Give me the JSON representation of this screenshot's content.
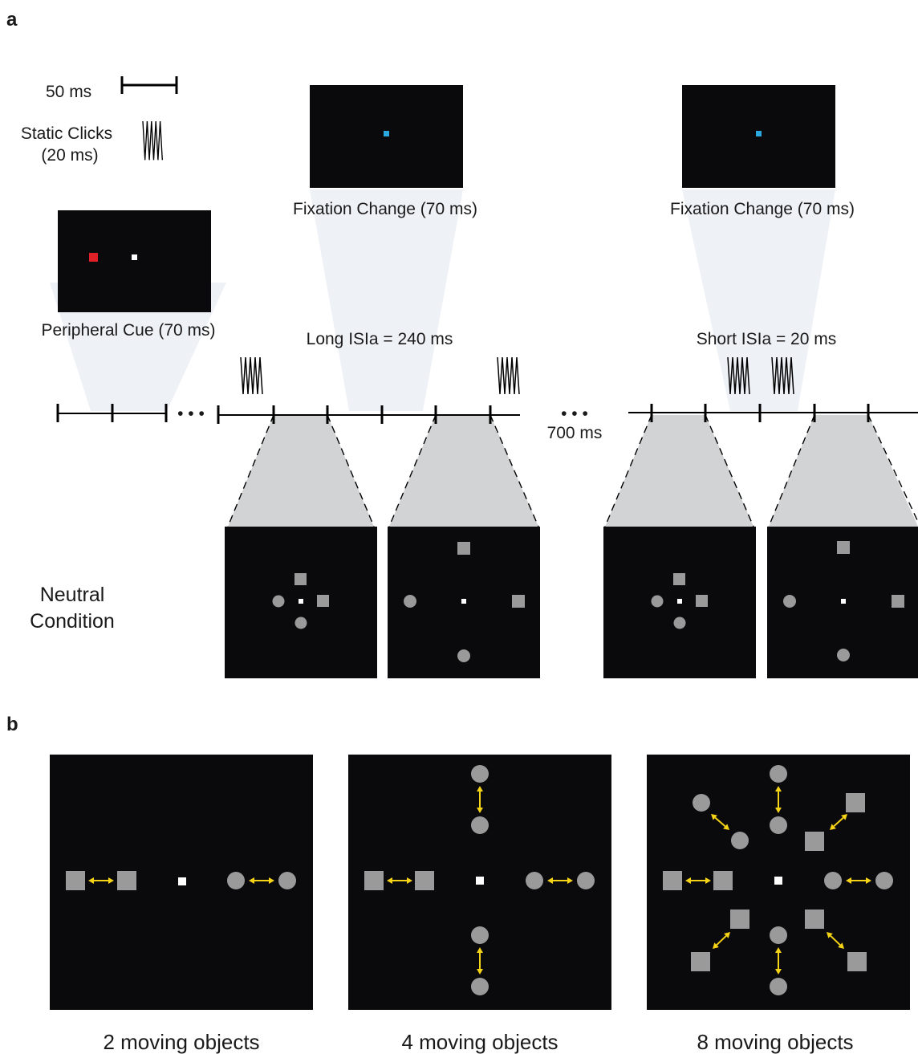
{
  "panel_a": {
    "label": "a",
    "scale_bar_label": "50 ms",
    "static_clicks_label": [
      "Static Clicks",
      "(20 ms)"
    ],
    "peripheral_cue_label": "Peripheral Cue (70 ms)",
    "fixation_change_label": "Fixation Change (70 ms)",
    "long_isi_label": "Long ISIa = 240 ms",
    "short_isi_label": "Short ISIa = 20 ms",
    "ellipsis": "• • •",
    "gap_label": "700 ms",
    "neutral_label": [
      "Neutral",
      "Condition"
    ],
    "colors": {
      "screen": "#0a0a0c",
      "cue": "#e02027",
      "fixation_change": "#2aa8e0",
      "fixation": "#ffffff",
      "object": "#9a9a9a",
      "fan": "#d1d3d4",
      "faint_fan": "#eef1f6"
    }
  },
  "panel_b": {
    "label": "b",
    "conditions": [
      {
        "caption": "2 moving objects"
      },
      {
        "caption": "4 moving objects"
      },
      {
        "caption": "8 moving objects"
      }
    ],
    "arrow_color": "#f5d316"
  }
}
